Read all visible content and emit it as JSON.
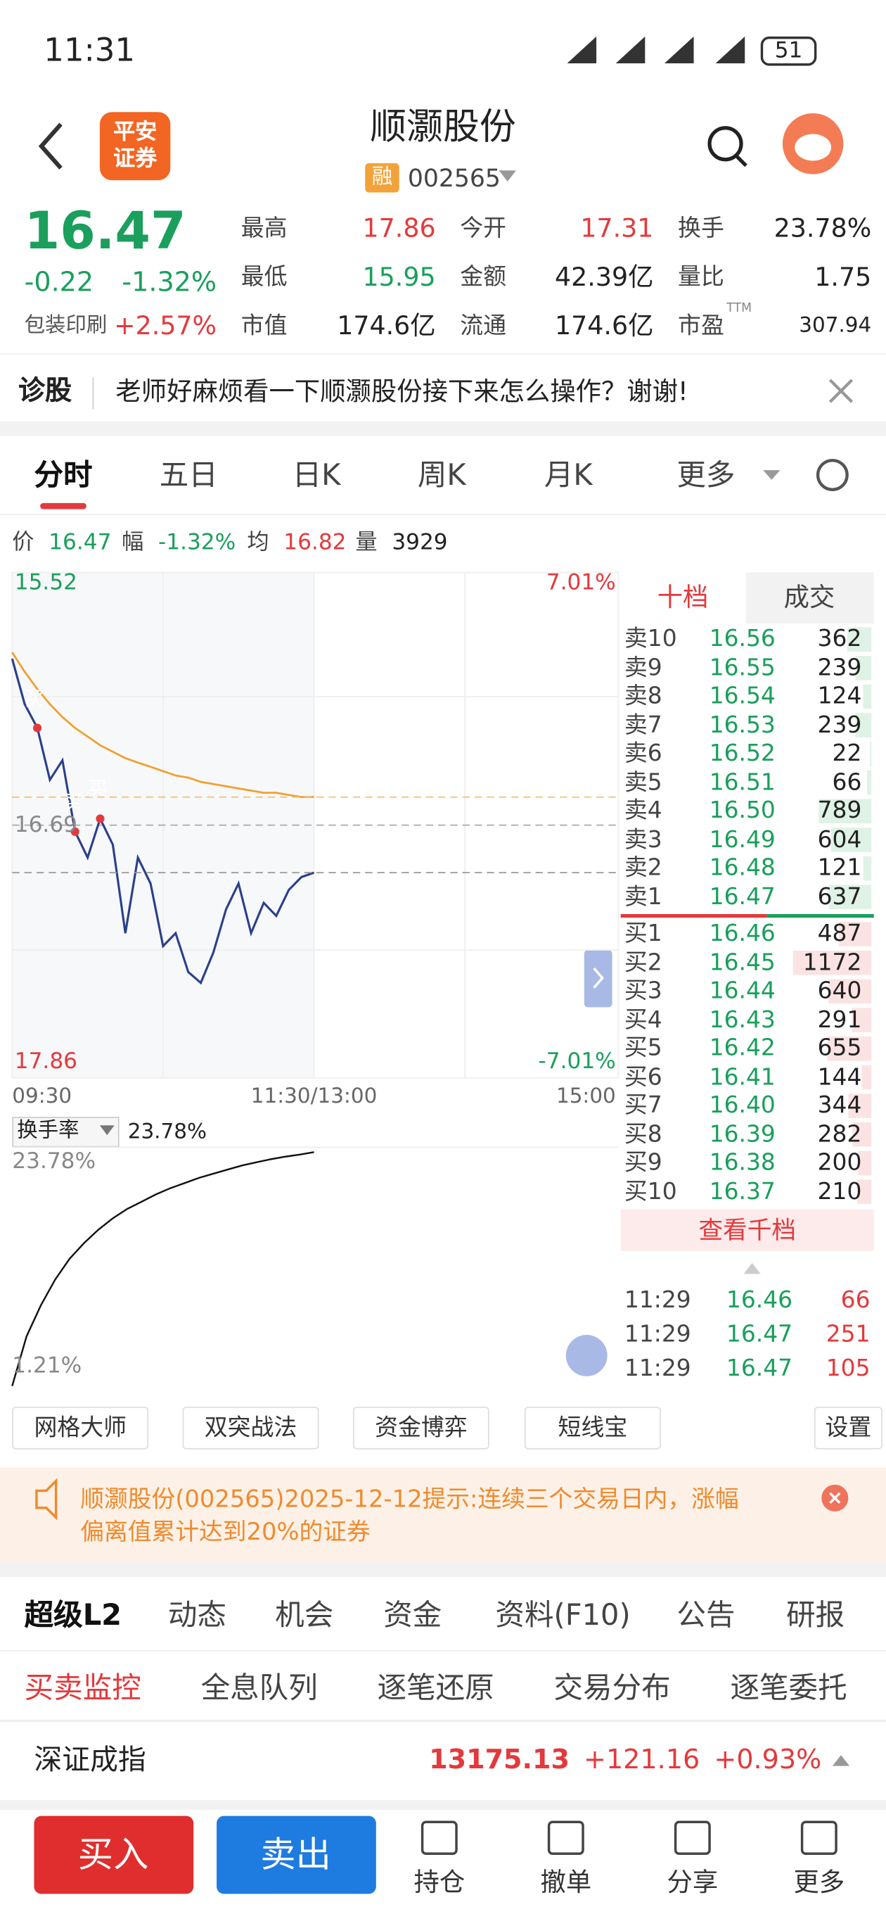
{
  "status": {
    "time": "11:31",
    "battery": "51"
  },
  "header": {
    "broker_line1": "平安",
    "broker_line2": "证券",
    "title": "顺灏股份",
    "tag": "融",
    "code": "002565"
  },
  "quote": {
    "price": "16.47",
    "change": "-0.22",
    "change_pct": "-1.32%",
    "sector": "包装印刷",
    "sector_pct": "+2.57%",
    "stats": [
      {
        "label": "最高",
        "value": "17.86",
        "color": "#e4393c"
      },
      {
        "label": "今开",
        "value": "17.31",
        "color": "#e4393c"
      },
      {
        "label": "换手",
        "value": "23.78%",
        "color": "#222222"
      },
      {
        "label": "最低",
        "value": "15.95",
        "color": "#1a9f5c"
      },
      {
        "label": "金额",
        "value": "42.39亿",
        "color": "#222222"
      },
      {
        "label": "量比",
        "value": "1.75",
        "color": "#222222"
      },
      {
        "label": "市值",
        "value": "174.6亿",
        "color": "#222222"
      },
      {
        "label": "流通",
        "value": "174.6亿",
        "color": "#222222"
      },
      {
        "label": "市盈",
        "sup": "TTM",
        "value": "307.94",
        "color": "#222222"
      }
    ]
  },
  "diagnosis": {
    "label": "诊股",
    "text": "老师好麻烦看一下顺灏股份接下来怎么操作？谢谢!"
  },
  "tabs": [
    "分时",
    "五日",
    "日K",
    "周K",
    "月K",
    "更多"
  ],
  "info_bar": [
    {
      "label": "价",
      "value": "16.47"
    },
    {
      "label": "幅",
      "value": "-1.32%"
    },
    {
      "label": "均",
      "value": "16.82"
    },
    {
      "label": "量",
      "value": "3929"
    }
  ],
  "price_chart": {
    "ylim": [
      15.52,
      17.86
    ],
    "yticks": [
      15.52,
      16.69,
      17.86
    ],
    "y2lim": [
      -7.01,
      7.01
    ],
    "y2ticks": [
      {
        "value": -7.01,
        "label": "-7.01%"
      },
      {
        "value": 7.01,
        "label": "7.01%"
      }
    ],
    "x_labels": [
      "09:30",
      "11:30/13:00",
      "15:00"
    ],
    "price": {
      "color": "#2b3f8c",
      "values": [
        17.46,
        17.25,
        17.14,
        16.9,
        16.99,
        16.66,
        16.54,
        16.72,
        16.6,
        16.19,
        16.54,
        16.42,
        16.13,
        16.19,
        16.01,
        15.96,
        16.1,
        16.3,
        16.42,
        16.19,
        16.33,
        16.27,
        16.39,
        16.45,
        16.47
      ]
    },
    "avg": {
      "color": "#f0a030",
      "values": [
        17.49,
        17.4,
        17.32,
        17.25,
        17.19,
        17.14,
        17.1,
        17.06,
        17.03,
        17.0,
        16.98,
        16.96,
        16.94,
        16.92,
        16.91,
        16.89,
        16.88,
        16.87,
        16.86,
        16.85,
        16.84,
        16.84,
        16.83,
        16.82,
        16.82
      ]
    },
    "signals": [
      "买",
      "买",
      "买"
    ]
  },
  "turnover_chart": {
    "selector": "换手率",
    "value": "23.78%",
    "ylim": [
      1.21,
      23.78
    ],
    "yticks": [
      {
        "value": 1.21,
        "label": "1.21%"
      },
      {
        "value": 23.78,
        "label": "23.78%"
      }
    ],
    "values": [
      1.21,
      6.0,
      9.0,
      11.5,
      13.5,
      15.0,
      16.3,
      17.4,
      18.3,
      19.0,
      19.7,
      20.3,
      20.8,
      21.3,
      21.7,
      22.1,
      22.5,
      22.8,
      23.1,
      23.35,
      23.55,
      23.78
    ]
  },
  "order_book": {
    "tabs": [
      "十档",
      "成交"
    ],
    "sell": [
      {
        "label": "卖10",
        "price": "16.56",
        "volume": 362
      },
      {
        "label": "卖9",
        "price": "16.55",
        "volume": 239
      },
      {
        "label": "卖8",
        "price": "16.54",
        "volume": 124
      },
      {
        "label": "卖7",
        "price": "16.53",
        "volume": 239
      },
      {
        "label": "卖6",
        "price": "16.52",
        "volume": 22
      },
      {
        "label": "卖5",
        "price": "16.51",
        "volume": 66
      },
      {
        "label": "卖4",
        "price": "16.50",
        "volume": 789
      },
      {
        "label": "卖3",
        "price": "16.49",
        "volume": 604
      },
      {
        "label": "卖2",
        "price": "16.48",
        "volume": 121
      },
      {
        "label": "卖1",
        "price": "16.47",
        "volume": 637
      }
    ],
    "buy": [
      {
        "label": "买1",
        "price": "16.46",
        "volume": 487
      },
      {
        "label": "买2",
        "price": "16.45",
        "volume": 1172
      },
      {
        "label": "买3",
        "price": "16.44",
        "volume": 640
      },
      {
        "label": "买4",
        "price": "16.43",
        "volume": 291
      },
      {
        "label": "买5",
        "price": "16.42",
        "volume": 655
      },
      {
        "label": "买6",
        "price": "16.41",
        "volume": 144
      },
      {
        "label": "买7",
        "price": "16.40",
        "volume": 344
      },
      {
        "label": "买8",
        "price": "16.39",
        "volume": 282
      },
      {
        "label": "买9",
        "price": "16.38",
        "volume": 200
      },
      {
        "label": "买10",
        "price": "16.37",
        "volume": 210
      }
    ],
    "more": "查看千档",
    "trades": [
      {
        "time": "11:29",
        "price": "16.46",
        "volume": 66
      },
      {
        "time": "11:29",
        "price": "16.47",
        "volume": 251
      },
      {
        "time": "11:29",
        "price": "16.47",
        "volume": 105
      }
    ]
  },
  "tools": [
    "网格大师",
    "双突战法",
    "资金博弈",
    "短线宝"
  ],
  "settings": "设置",
  "notice": {
    "line1": "顺灏股份(002565)2025-12-12提示:连续三个交易日内，涨幅",
    "line2": "偏离值累计达到20%的证券"
  },
  "sections": [
    "超级L2",
    "动态",
    "机会",
    "资金",
    "资料(F10)",
    "公告",
    "研报"
  ],
  "subtabs": [
    "买卖监控",
    "全息队列",
    "逐笔还原",
    "交易分布",
    "逐笔委托"
  ],
  "index": {
    "name": "深证成指",
    "value": "13175.13",
    "change": "+121.16",
    "pct": "+0.93%"
  },
  "bottom": {
    "buy": "买入",
    "sell": "卖出",
    "nav": [
      "持仓",
      "撤单",
      "分享",
      "更多"
    ]
  }
}
